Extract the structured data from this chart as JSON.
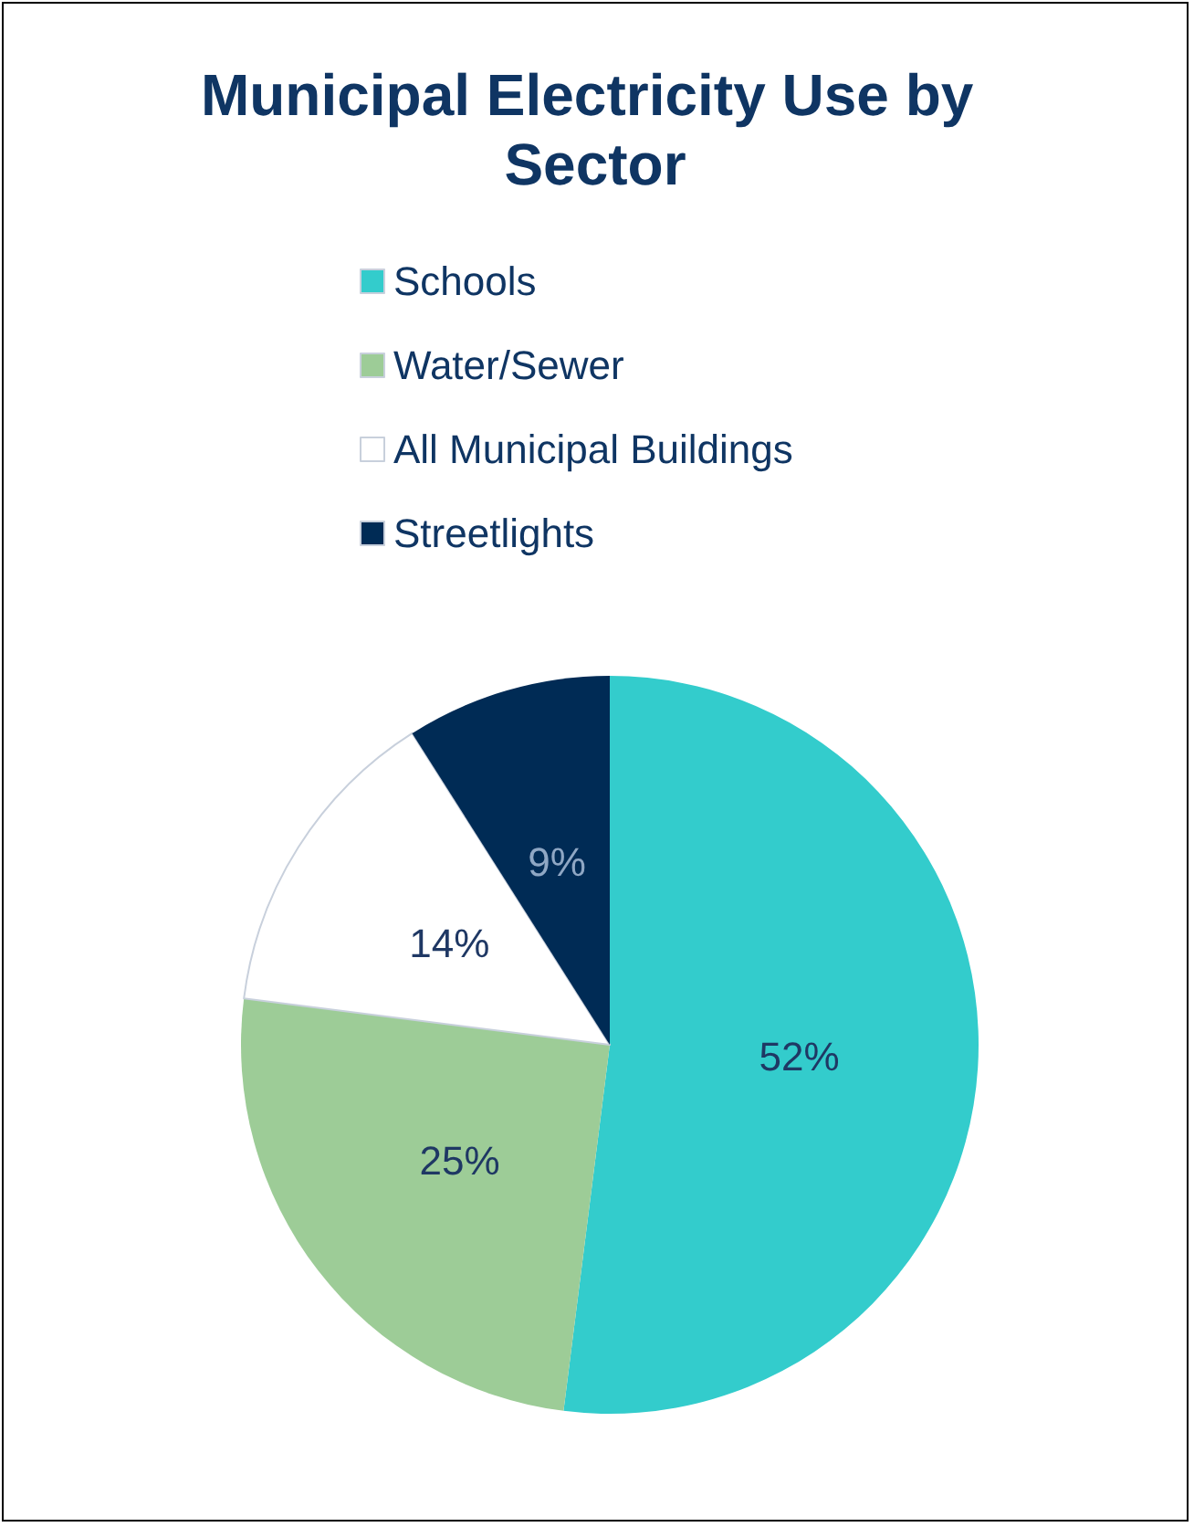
{
  "chart_data": {
    "type": "pie",
    "title": "Municipal Electricity Use by Sector",
    "categories": [
      "Schools",
      "Water/Sewer",
      "All Municipal Buildings",
      "Streetlights"
    ],
    "values": [
      52,
      25,
      14,
      9
    ],
    "colors": [
      "#33cccc",
      "#9dcc97",
      "#ffffff",
      "#002b55"
    ],
    "value_labels": [
      "52%",
      "25%",
      "14%",
      "9%"
    ],
    "legend": "top"
  }
}
